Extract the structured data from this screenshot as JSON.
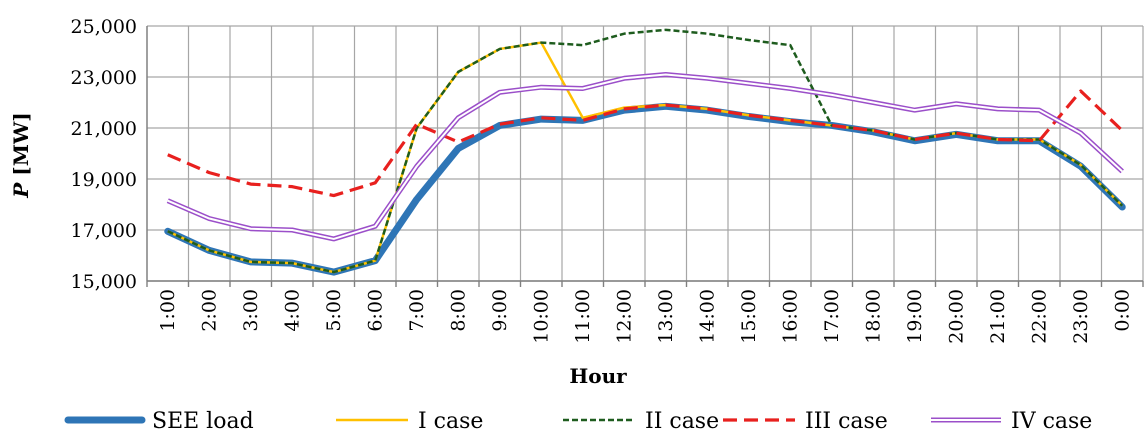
{
  "chart_data": {
    "type": "line",
    "title": "",
    "xlabel": "Hour",
    "ylabel_italic": "P",
    "ylabel_unit": " [MW]",
    "ylim": [
      15000,
      25000
    ],
    "yticks": [
      15000,
      17000,
      19000,
      21000,
      23000,
      25000
    ],
    "ytick_labels": [
      "15,000",
      "17,000",
      "19,000",
      "21,000",
      "23,000",
      "25,000"
    ],
    "grid": true,
    "legend_position": "bottom",
    "categories": [
      "1:00",
      "2:00",
      "3:00",
      "4:00",
      "5:00",
      "6:00",
      "7:00",
      "8:00",
      "9:00",
      "10:00",
      "11:00",
      "12:00",
      "13:00",
      "14:00",
      "15:00",
      "16:00",
      "17:00",
      "18:00",
      "19:00",
      "20:00",
      "21:00",
      "22:00",
      "23:00",
      "0:00"
    ],
    "series": [
      {
        "name": "SEE load",
        "color": "#2e75b6",
        "style": "thick",
        "values": [
          16950,
          16200,
          15750,
          15700,
          15350,
          15800,
          18200,
          20200,
          21100,
          21350,
          21300,
          21700,
          21850,
          21700,
          21450,
          21250,
          21100,
          20850,
          20500,
          20750,
          20500,
          20500,
          19500,
          17900
        ]
      },
      {
        "name": "I case",
        "color": "#ffc000",
        "style": "solid",
        "values": [
          16950,
          16200,
          15750,
          15700,
          15350,
          15800,
          21000,
          23200,
          24100,
          24350,
          21400,
          21800,
          21900,
          21750,
          21500,
          21300,
          21100,
          20900,
          20550,
          20800,
          20550,
          20550,
          19550,
          17950
        ]
      },
      {
        "name": "II case",
        "color": "#1e5c1e",
        "style": "dash-short",
        "values": [
          16950,
          16200,
          15750,
          15700,
          15350,
          15800,
          21000,
          23200,
          24100,
          24350,
          24250,
          24700,
          24850,
          24700,
          24450,
          24250,
          21100,
          20900,
          20550,
          20800,
          20550,
          20550,
          19550,
          17950
        ]
      },
      {
        "name": "III case",
        "color": "#e8201e",
        "style": "dash-long",
        "values": [
          19950,
          19250,
          18800,
          18700,
          18350,
          18850,
          21150,
          20450,
          21150,
          21400,
          21300,
          21750,
          21900,
          21750,
          21500,
          21300,
          21100,
          20900,
          20550,
          20800,
          20550,
          20500,
          22450,
          20900
        ]
      },
      {
        "name": "IV case",
        "color": "#9b4fc9",
        "style": "double",
        "values": [
          18150,
          17450,
          17050,
          17000,
          16650,
          17150,
          19500,
          21400,
          22400,
          22600,
          22550,
          22950,
          23100,
          22950,
          22750,
          22550,
          22300,
          22000,
          21700,
          21950,
          21750,
          21700,
          20800,
          19300
        ]
      }
    ]
  }
}
